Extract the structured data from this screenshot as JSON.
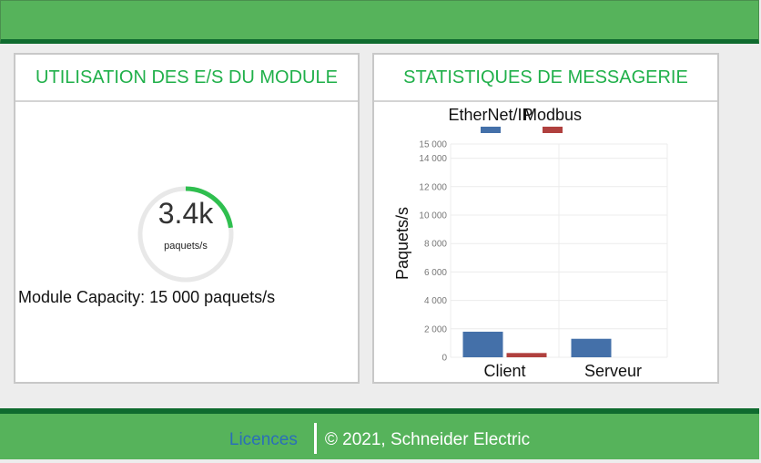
{
  "module_panel": {
    "title": "UTILISATION DES E/S DU MODULE",
    "gauge_value": "3.4k",
    "gauge_unit": "paquets/s",
    "gauge_fraction": 0.227,
    "capacity_text": "Module Capacity: 15 000 paquets/s"
  },
  "messaging_panel": {
    "title": "STATISTIQUES DE MESSAGERIE"
  },
  "colors": {
    "accent_green": "#20b04a",
    "ethernet_ip": "#4470a9",
    "modbus": "#b0403e"
  },
  "chart_data": {
    "type": "bar",
    "categories": [
      "Client",
      "Serveur"
    ],
    "series": [
      {
        "name": "EtherNet/IP",
        "values": [
          1800,
          1300
        ]
      },
      {
        "name": "Modbus",
        "values": [
          300,
          0
        ]
      }
    ],
    "ylabel": "Paquets/s",
    "ylim": [
      0,
      15000
    ],
    "yticks": [
      0,
      2000,
      4000,
      6000,
      8000,
      10000,
      12000,
      14000,
      15000
    ],
    "ytick_labels": [
      "0",
      "2 000",
      "4 000",
      "6 000",
      "8 000",
      "10 000",
      "12 000",
      "14 000",
      "15 000"
    ],
    "legend_position": "top",
    "grid": true
  },
  "footer": {
    "licences_label": "Licences",
    "copyright": "© 2021, Schneider Electric"
  }
}
